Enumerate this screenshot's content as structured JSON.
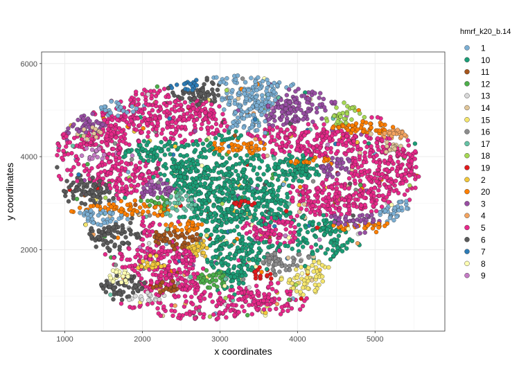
{
  "chart_data": {
    "type": "scatter",
    "title": "",
    "xlabel": "x coordinates",
    "ylabel": "y coordinates",
    "xlim": [
      700,
      5900
    ],
    "ylim": [
      250,
      6250
    ],
    "xticks": [
      1000,
      2000,
      3000,
      4000,
      5000
    ],
    "yticks": [
      2000,
      4000,
      6000
    ],
    "grid": true,
    "legend": {
      "title": "hmrf_k20_b.14",
      "position": "right",
      "entries": [
        {
          "label": "1",
          "color": "#7bafd4"
        },
        {
          "label": "10",
          "color": "#1b9e77"
        },
        {
          "label": "11",
          "color": "#a6561d"
        },
        {
          "label": "12",
          "color": "#4daf4a"
        },
        {
          "label": "13",
          "color": "#d9d9d9"
        },
        {
          "label": "14",
          "color": "#e1c699"
        },
        {
          "label": "15",
          "color": "#f5e66e"
        },
        {
          "label": "16",
          "color": "#8c8c8c"
        },
        {
          "label": "17",
          "color": "#66c2a5"
        },
        {
          "label": "18",
          "color": "#a6d854"
        },
        {
          "label": "19",
          "color": "#e31a1c"
        },
        {
          "label": "2",
          "color": "#f2c83b"
        },
        {
          "label": "20",
          "color": "#ff7f00"
        },
        {
          "label": "3",
          "color": "#984ea3"
        },
        {
          "label": "4",
          "color": "#f4a460"
        },
        {
          "label": "5",
          "color": "#e7298a"
        },
        {
          "label": "6",
          "color": "#5a5a5a"
        },
        {
          "label": "7",
          "color": "#2c7bb6"
        },
        {
          "label": "8",
          "color": "#ffffb3"
        },
        {
          "label": "9",
          "color": "#c47bc4"
        }
      ]
    },
    "clusters": [
      {
        "label": "5",
        "regions": [
          [
            1900,
            4900,
            450,
            250
          ],
          [
            2600,
            4950,
            300,
            350
          ],
          [
            4300,
            4300,
            500,
            300
          ],
          [
            5100,
            3800,
            400,
            500
          ],
          [
            1700,
            3600,
            400,
            300
          ],
          [
            2300,
            1600,
            400,
            600
          ],
          [
            3600,
            2500,
            300,
            200
          ],
          [
            4500,
            3100,
            500,
            300
          ],
          [
            3500,
            1000,
            300,
            200
          ],
          [
            1500,
            4300,
            300,
            300
          ]
        ]
      },
      {
        "label": "10",
        "regions": [
          [
            3000,
            3200,
            400,
            700
          ],
          [
            3500,
            3000,
            300,
            500
          ],
          [
            2600,
            3600,
            300,
            300
          ],
          [
            4000,
            3800,
            250,
            300
          ],
          [
            2000,
            4100,
            300,
            150
          ],
          [
            3200,
            1800,
            300,
            400
          ],
          [
            4300,
            2500,
            250,
            200
          ]
        ]
      },
      {
        "label": "6",
        "regions": [
          [
            1750,
            1250,
            300,
            200
          ],
          [
            1350,
            3300,
            200,
            300
          ],
          [
            2700,
            5300,
            250,
            200
          ],
          [
            1650,
            2300,
            250,
            200
          ]
        ]
      },
      {
        "label": "20",
        "regions": [
          [
            1900,
            2900,
            500,
            100
          ],
          [
            4200,
            3900,
            350,
            80
          ],
          [
            4800,
            2500,
            400,
            80
          ],
          [
            3300,
            4200,
            300,
            100
          ],
          [
            4800,
            4600,
            400,
            100
          ],
          [
            2600,
            2500,
            200,
            100
          ]
        ]
      },
      {
        "label": "1",
        "regions": [
          [
            3400,
            5200,
            300,
            350
          ],
          [
            1700,
            5000,
            250,
            150
          ],
          [
            1450,
            2700,
            200,
            150
          ],
          [
            5300,
            2800,
            200,
            150
          ]
        ]
      },
      {
        "label": "3",
        "regions": [
          [
            3900,
            5000,
            300,
            250
          ],
          [
            1300,
            4700,
            200,
            200
          ],
          [
            4500,
            3800,
            200,
            200
          ],
          [
            4700,
            2600,
            300,
            150
          ],
          [
            2200,
            3300,
            200,
            200
          ]
        ]
      },
      {
        "label": "19",
        "regions": [
          [
            3300,
            3000,
            150,
            150
          ],
          [
            3500,
            1500,
            120,
            120
          ]
        ]
      },
      {
        "label": "14",
        "regions": [
          [
            1350,
            4500,
            150,
            150
          ],
          [
            5200,
            4200,
            150,
            150
          ]
        ]
      },
      {
        "label": "2",
        "regions": [
          [
            2100,
            1700,
            200,
            200
          ],
          [
            2700,
            2000,
            150,
            150
          ]
        ]
      },
      {
        "label": "11",
        "regions": [
          [
            2400,
            2200,
            250,
            200
          ],
          [
            2300,
            1200,
            200,
            150
          ]
        ]
      },
      {
        "label": "12",
        "regions": [
          [
            2900,
            1400,
            200,
            150
          ],
          [
            2200,
            3000,
            150,
            150
          ]
        ]
      },
      {
        "label": "17",
        "regions": [
          [
            2500,
            3000,
            200,
            200
          ]
        ]
      },
      {
        "label": "13",
        "regions": [
          [
            2100,
            1000,
            200,
            100
          ]
        ]
      },
      {
        "label": "15",
        "regions": [
          [
            4000,
            1300,
            150,
            150
          ]
        ]
      },
      {
        "label": "16",
        "regions": [
          [
            3700,
            1700,
            150,
            150
          ]
        ]
      },
      {
        "label": "18",
        "regions": [
          [
            4600,
            4800,
            150,
            150
          ]
        ]
      },
      {
        "label": "4",
        "regions": [
          [
            5300,
            4500,
            200,
            100
          ]
        ]
      },
      {
        "label": "7",
        "regions": [
          [
            2600,
            5500,
            150,
            100
          ]
        ]
      },
      {
        "label": "8",
        "regions": [
          [
            1700,
            1400,
            150,
            150
          ]
        ]
      },
      {
        "label": "9",
        "regions": [
          [
            1400,
            4100,
            150,
            150
          ]
        ]
      }
    ]
  }
}
